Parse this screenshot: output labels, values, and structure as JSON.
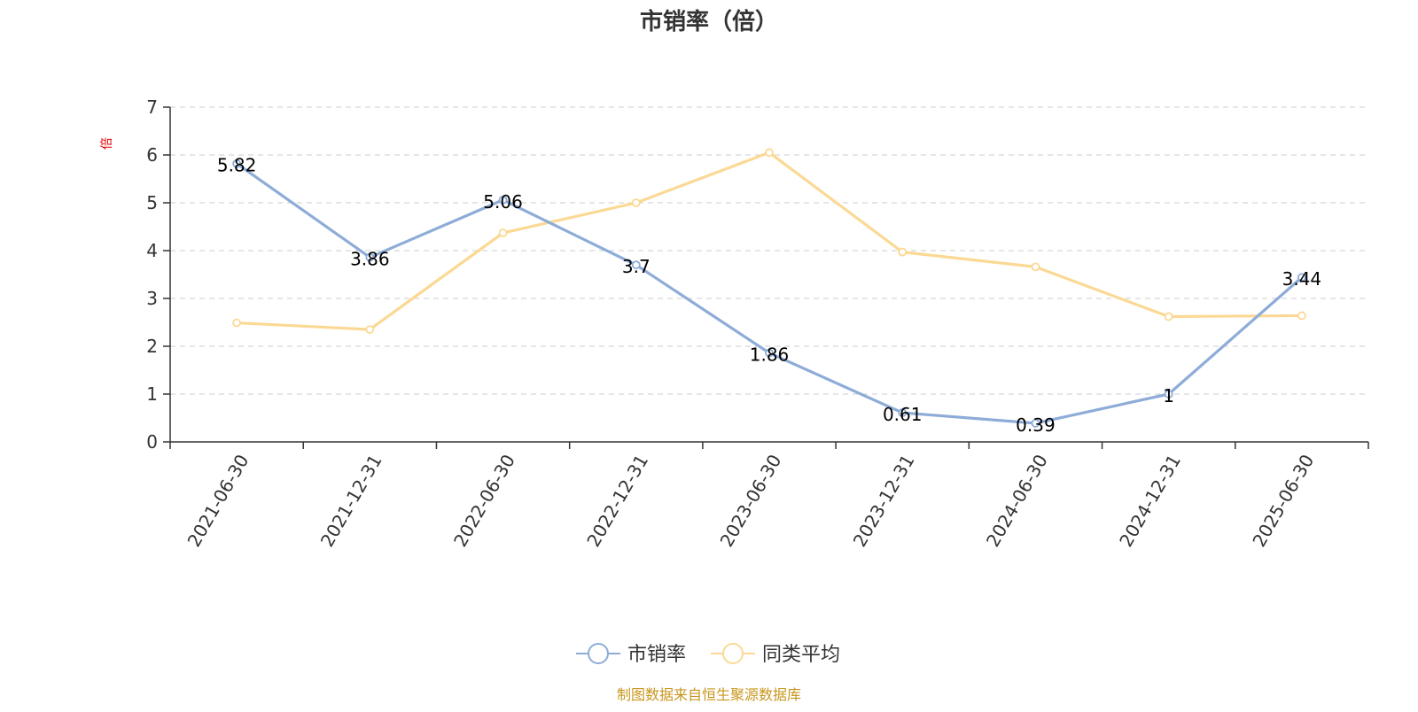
{
  "chart_data": {
    "type": "line",
    "title": "市销率（倍）",
    "ylabel": "倍",
    "categories": [
      "2021-06-30",
      "2021-12-31",
      "2022-06-30",
      "2022-12-31",
      "2023-06-30",
      "2023-12-31",
      "2024-06-30",
      "2024-12-31",
      "2025-06-30"
    ],
    "y_ticks": [
      "0",
      "1",
      "2",
      "3",
      "4",
      "5",
      "6",
      "7"
    ],
    "ylim": [
      0,
      7
    ],
    "grid": true,
    "legend_position": "bottom-center",
    "series": [
      {
        "name": "市销率",
        "color": "#8eacd8",
        "values": [
          5.82,
          3.86,
          5.06,
          3.7,
          1.86,
          0.61,
          0.39,
          1,
          3.44
        ],
        "labels": [
          "5.82",
          "3.86",
          "5.06",
          "3.7",
          "1.86",
          "0.61",
          "0.39",
          "1",
          "3.44"
        ]
      },
      {
        "name": "同类平均",
        "color": "#fbd994",
        "values": [
          2.49,
          2.35,
          4.37,
          5.0,
          6.05,
          3.97,
          3.66,
          2.62,
          2.64
        ]
      }
    ]
  },
  "source_text": "制图数据来自恒生聚源数据库"
}
